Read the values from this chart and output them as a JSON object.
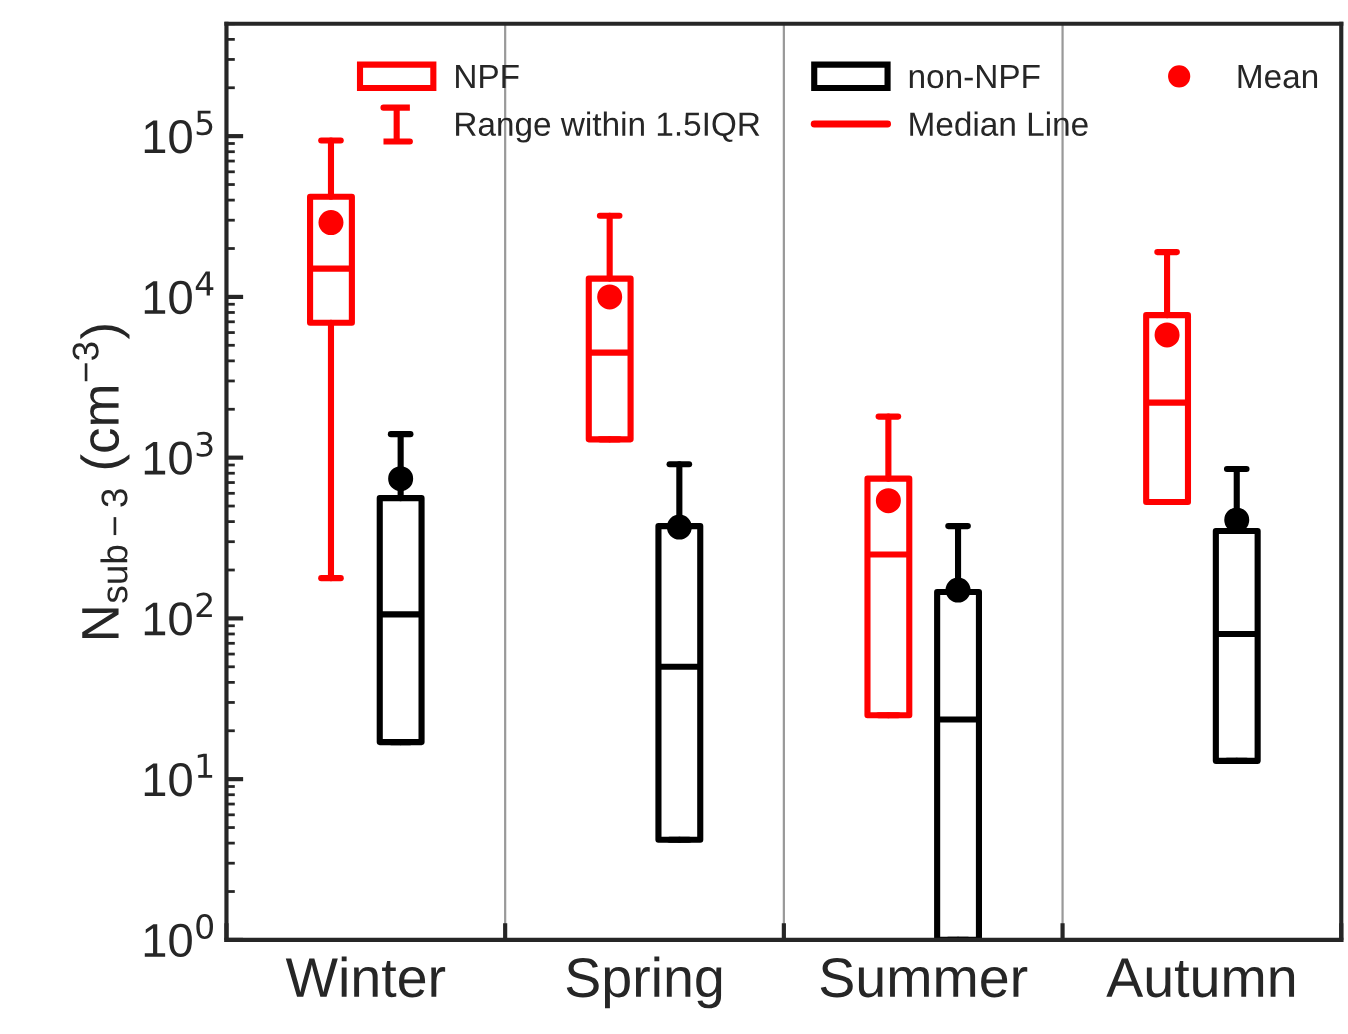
{
  "chart_data": {
    "type": "box",
    "categories": [
      "Winter",
      "Spring",
      "Summer",
      "Autumn"
    ],
    "ylabel": "N$_{sub−3}$ (cm$^{−3}$)",
    "log": "y",
    "ylim": [
      1,
      500000
    ],
    "yticks": [
      {
        "value": 1,
        "label": "10$^{0}$"
      },
      {
        "value": 10,
        "label": "10$^{1}$"
      },
      {
        "value": 100,
        "label": "10$^{2}$"
      },
      {
        "value": 1000,
        "label": "10$^{3}$"
      },
      {
        "value": 10000,
        "label": "10$^{4}$"
      },
      {
        "value": 100000,
        "label": "10$^{5}$"
      }
    ],
    "grid": "x",
    "legend": "top",
    "series": [
      {
        "name": "NPF",
        "color": "#ff0000",
        "boxes": [
          {
            "low": 178,
            "q1": 6900,
            "median": 15000,
            "q3": 42000,
            "high": 94000,
            "mean": 29000
          },
          {
            "low": 1300,
            "q1": 1300,
            "median": 4500,
            "q3": 13000,
            "high": 32000,
            "mean": 10000
          },
          {
            "low": 25,
            "q1": 25,
            "median": 250,
            "q3": 740,
            "high": 1800,
            "mean": 540
          },
          {
            "low": 530,
            "q1": 530,
            "median": 2200,
            "q3": 7700,
            "high": 19000,
            "mean": 5800
          }
        ]
      },
      {
        "name": "non-NPF",
        "color": "#000000",
        "boxes": [
          {
            "low": 17,
            "q1": 17,
            "median": 106,
            "q3": 560,
            "high": 1400,
            "mean": 740
          },
          {
            "low": 4.2,
            "q1": 4.2,
            "median": 50,
            "q3": 375,
            "high": 910,
            "mean": 370
          },
          {
            "low": 1,
            "q1": 1,
            "median": 23.5,
            "q3": 146,
            "high": 375,
            "mean": 150
          },
          {
            "low": 13,
            "q1": 13,
            "median": 80,
            "q3": 350,
            "high": 850,
            "mean": 410
          }
        ]
      }
    ],
    "annotations": [
      "Mean",
      "Range within 1.5IQR",
      "Median Line"
    ]
  }
}
